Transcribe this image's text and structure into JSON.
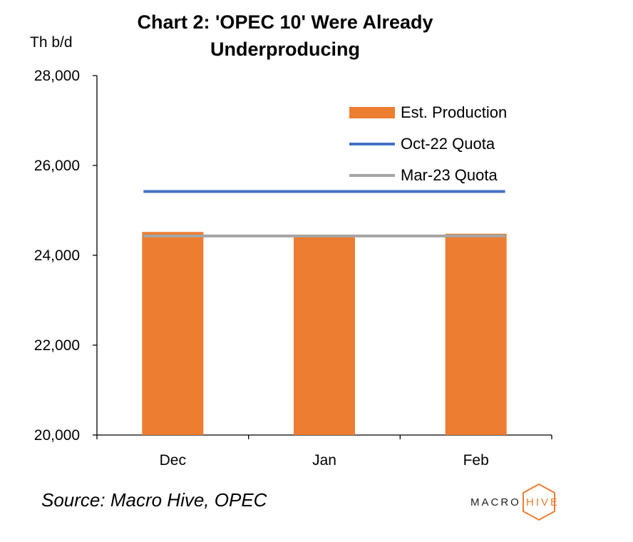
{
  "title_line1": "Chart 2: 'OPEC 10' Were Already",
  "title_line2": "Underproducing",
  "source": "Source: Macro Hive, OPEC",
  "logo": {
    "left": "MACRO",
    "right": "HIVE",
    "accent_color": "#ED7D31"
  },
  "chart_data": {
    "type": "bar",
    "title": "Chart 2: 'OPEC 10' Were Already Underproducing",
    "ylabel": "Th b/d",
    "xlabel": "",
    "categories": [
      "Dec",
      "Jan",
      "Feb"
    ],
    "ylim": [
      20000,
      28000
    ],
    "yticks": [
      20000,
      22000,
      24000,
      26000,
      28000
    ],
    "ytick_labels": [
      "20,000",
      "22,000",
      "24,000",
      "26,000",
      "28,000"
    ],
    "series": [
      {
        "name": "Est. Production",
        "kind": "bar",
        "color": "#ED7D31",
        "values": [
          24520,
          24420,
          24480
        ]
      },
      {
        "name": "Oct-22 Quota",
        "kind": "line",
        "color": "#4472C4",
        "values": [
          25420,
          25420,
          25420
        ]
      },
      {
        "name": "Mar-23 Quota",
        "kind": "line",
        "color": "#A5A5A5",
        "values": [
          24430,
          24430,
          24430
        ]
      }
    ],
    "legend_position": "top-right"
  }
}
